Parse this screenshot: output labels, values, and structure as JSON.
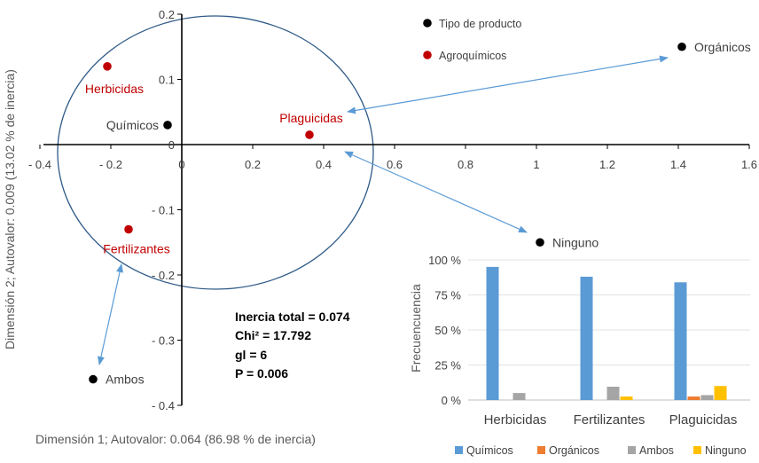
{
  "chart_data": [
    {
      "type": "scatter",
      "xlabel": "Dimensión 1; Autovalor: 0.064 (86.98 % de inercia)",
      "ylabel": "Dimensión 2; Autovalor: 0.009 (13.02 % de inercia)",
      "xlim": [
        -0.4,
        1.6
      ],
      "ylim": [
        -0.4,
        0.2
      ],
      "x_ticks": [
        "- 0.4",
        "- 0.2",
        "0",
        "0.2",
        "0.4",
        "0.6",
        "0.8",
        "1",
        "1.2",
        "1.4",
        "1.6"
      ],
      "y_ticks": [
        "0.2",
        "0.1",
        "0",
        "- 0.1",
        "- 0.2",
        "- 0.3",
        "- 0.4"
      ],
      "x_tick_values": [
        -0.4,
        -0.2,
        0,
        0.2,
        0.4,
        0.6,
        0.8,
        1,
        1.2,
        1.4,
        1.6
      ],
      "y_tick_values": [
        0.2,
        0.1,
        0,
        -0.1,
        -0.2,
        -0.3,
        -0.4
      ],
      "legend": [
        {
          "label": "Tipo de producto",
          "color": "#000000"
        },
        {
          "label": "Agroquímicos",
          "color": "#c00000"
        }
      ],
      "series": [
        {
          "name": "Tipo de producto",
          "color": "#000000",
          "points": [
            {
              "label": "Químicos",
              "x": -0.04,
              "y": 0.03
            },
            {
              "label": "Orgánicos",
              "x": 1.41,
              "y": 0.15
            },
            {
              "label": "Ninguno",
              "x": 1.01,
              "y": -0.15
            },
            {
              "label": "Ambos",
              "x": -0.25,
              "y": -0.36
            }
          ]
        },
        {
          "name": "Agroquímicos",
          "color": "#c00000",
          "points": [
            {
              "label": "Herbicidas",
              "x": -0.21,
              "y": 0.12
            },
            {
              "label": "Plaguicidas",
              "x": 0.36,
              "y": 0.015
            },
            {
              "label": "Fertilizantes",
              "x": -0.15,
              "y": -0.13
            }
          ]
        }
      ],
      "annotations": [
        "Inercia total = 0.074",
        "Chi² = 17.792",
        "gl = 6",
        "P = 0.006"
      ]
    },
    {
      "type": "bar",
      "ylabel": "Frecuencuencia",
      "ylim": [
        0,
        100
      ],
      "y_ticks": [
        "0 %",
        "25 %",
        "50 %",
        "75 %",
        "100 %"
      ],
      "y_tick_values": [
        0,
        25,
        50,
        75,
        100
      ],
      "categories": [
        "Herbicidas",
        "Fertilizantes",
        "Plaguicidas"
      ],
      "series": [
        {
          "name": "Químicos",
          "color": "#5b9bd5",
          "values": [
            95,
            88,
            84
          ]
        },
        {
          "name": "Orgánicos",
          "color": "#ed7d31",
          "values": [
            0,
            0,
            2.5
          ]
        },
        {
          "name": "Ambos",
          "color": "#a5a5a5",
          "values": [
            5,
            9.5,
            3.5
          ]
        },
        {
          "name": "Ninguno",
          "color": "#ffc000",
          "values": [
            0,
            2.5,
            10
          ]
        }
      ],
      "legend_position": "bottom"
    }
  ]
}
